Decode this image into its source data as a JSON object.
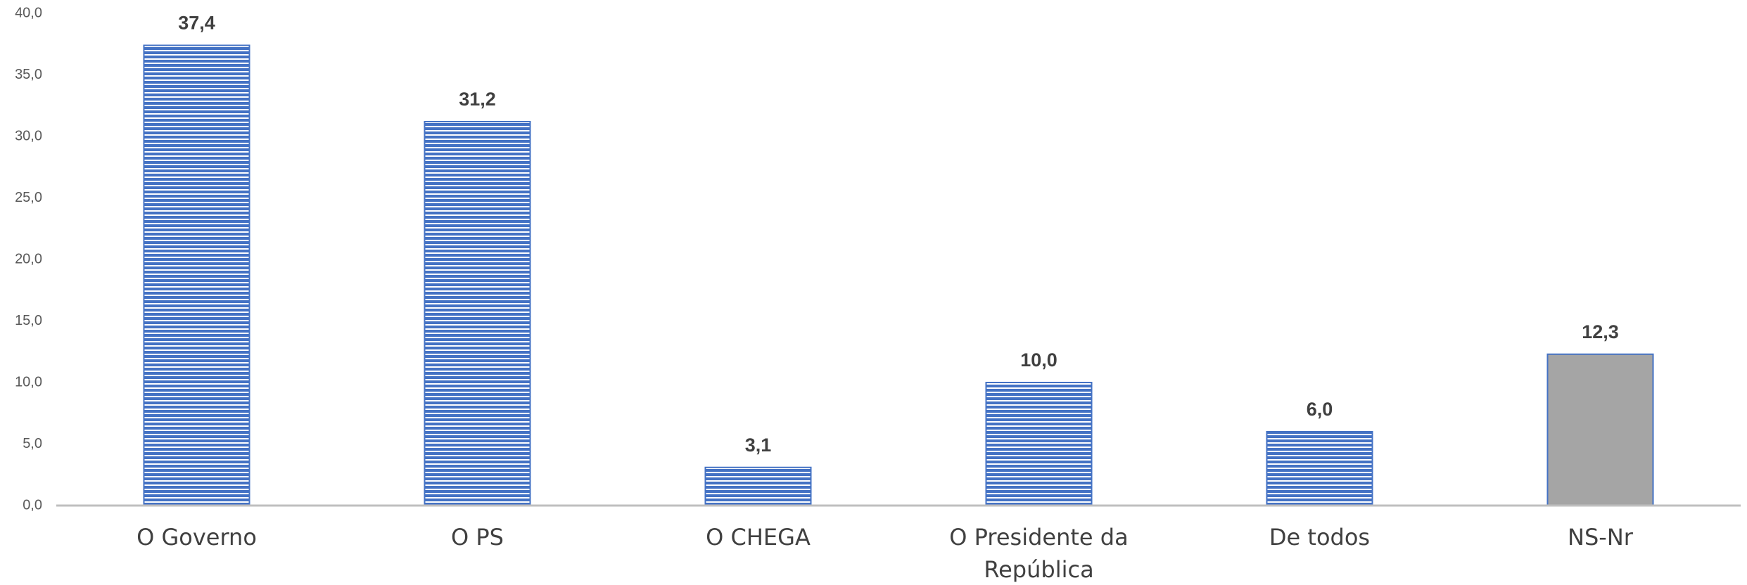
{
  "chart_data": {
    "type": "bar",
    "categories": [
      "O Governo",
      "O PS",
      "O CHEGA",
      "O Presidente da República",
      "De todos",
      "NS-Nr"
    ],
    "values": [
      37.4,
      31.2,
      3.1,
      10.0,
      6.0,
      12.3
    ],
    "value_labels": [
      "37,4",
      "31,2",
      "3,1",
      "10,0",
      "6,0",
      "12,3"
    ],
    "colors": [
      "#4472c4",
      "#4472c4",
      "#4472c4",
      "#4472c4",
      "#4472c4",
      "#a5a5a5"
    ],
    "hatch": [
      true,
      true,
      true,
      true,
      true,
      false
    ],
    "ylim": [
      0,
      40
    ],
    "yticks": [
      {
        "value": 0,
        "label": "0,0"
      },
      {
        "value": 5,
        "label": "5,0"
      },
      {
        "value": 10,
        "label": "10,0"
      },
      {
        "value": 15,
        "label": "15,0"
      },
      {
        "value": 20,
        "label": "20,0"
      },
      {
        "value": 25,
        "label": "25,0"
      },
      {
        "value": 30,
        "label": "30,0"
      },
      {
        "value": 35,
        "label": "35,0"
      },
      {
        "value": 40,
        "label": "40,0"
      }
    ],
    "grid": false
  }
}
